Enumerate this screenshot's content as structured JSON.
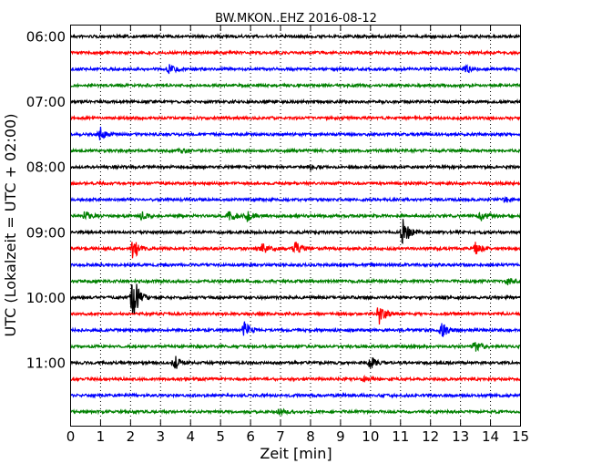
{
  "chart_data": {
    "type": "line",
    "title": "BW.MKON..EHZ 2016-08-12",
    "xlabel": "Zeit  [min]",
    "ylabel": "UTC (Lokalzeit = UTC + 02:00)",
    "xlim": [
      0,
      15
    ],
    "x_ticks": [
      "0",
      "1",
      "2",
      "3",
      "4",
      "5",
      "6",
      "7",
      "8",
      "9",
      "10",
      "11",
      "12",
      "13",
      "14",
      "15"
    ],
    "y_ticks": [
      {
        "label": "06:00",
        "trace": 0
      },
      {
        "label": "07:00",
        "trace": 4
      },
      {
        "label": "08:00",
        "trace": 8
      },
      {
        "label": "09:00",
        "trace": 12
      },
      {
        "label": "10:00",
        "trace": 16
      },
      {
        "label": "11:00",
        "trace": 20
      }
    ],
    "grid": "vertical-dotted",
    "trace_interval_min": 15,
    "trace_colors": [
      "#000000",
      "#ff0000",
      "#0000ff",
      "#008000"
    ],
    "traces": [
      {
        "start": "06:00",
        "events": []
      },
      {
        "start": "06:15",
        "events": []
      },
      {
        "start": "06:30",
        "events": [
          {
            "t": 3.3,
            "amp": 0.35
          },
          {
            "t": 13.2,
            "amp": 0.25
          }
        ]
      },
      {
        "start": "06:45",
        "events": []
      },
      {
        "start": "07:00",
        "events": []
      },
      {
        "start": "07:15",
        "events": []
      },
      {
        "start": "07:30",
        "events": [
          {
            "t": 1.0,
            "amp": 0.5
          }
        ]
      },
      {
        "start": "07:45",
        "events": [
          {
            "t": 3.7,
            "amp": 0.25
          }
        ]
      },
      {
        "start": "08:00",
        "events": [
          {
            "t": 8.0,
            "amp": 0.15
          }
        ]
      },
      {
        "start": "08:15",
        "events": []
      },
      {
        "start": "08:30",
        "events": [
          {
            "t": 14.5,
            "amp": 0.25
          }
        ]
      },
      {
        "start": "08:45",
        "events": [
          {
            "t": 0.5,
            "amp": 0.4
          },
          {
            "t": 2.4,
            "amp": 0.3
          },
          {
            "t": 5.3,
            "amp": 0.55
          },
          {
            "t": 5.9,
            "amp": 0.4
          },
          {
            "t": 13.7,
            "amp": 0.35
          }
        ]
      },
      {
        "start": "09:00",
        "events": [
          {
            "t": 11.1,
            "amp": 1.1
          }
        ]
      },
      {
        "start": "09:15",
        "events": [
          {
            "t": 2.1,
            "amp": 0.9
          },
          {
            "t": 6.4,
            "amp": 0.4
          },
          {
            "t": 7.5,
            "amp": 0.5
          },
          {
            "t": 13.5,
            "amp": 0.5
          }
        ]
      },
      {
        "start": "09:30",
        "events": []
      },
      {
        "start": "09:45",
        "events": [
          {
            "t": 14.6,
            "amp": 0.3
          }
        ]
      },
      {
        "start": "10:00",
        "events": [
          {
            "t": 2.1,
            "amp": 1.8
          }
        ]
      },
      {
        "start": "10:15",
        "events": [
          {
            "t": 10.3,
            "amp": 0.9
          }
        ]
      },
      {
        "start": "10:30",
        "events": [
          {
            "t": 5.8,
            "amp": 0.6
          },
          {
            "t": 12.4,
            "amp": 0.55
          }
        ]
      },
      {
        "start": "10:45",
        "events": [
          {
            "t": 13.5,
            "amp": 0.4
          }
        ]
      },
      {
        "start": "11:00",
        "events": [
          {
            "t": 3.5,
            "amp": 0.5
          },
          {
            "t": 10.0,
            "amp": 0.5
          }
        ]
      },
      {
        "start": "11:15",
        "events": [
          {
            "t": 9.8,
            "amp": 0.2
          }
        ]
      },
      {
        "start": "11:30",
        "events": []
      },
      {
        "start": "11:45",
        "events": [
          {
            "t": 7.0,
            "amp": 0.15
          }
        ]
      }
    ]
  }
}
